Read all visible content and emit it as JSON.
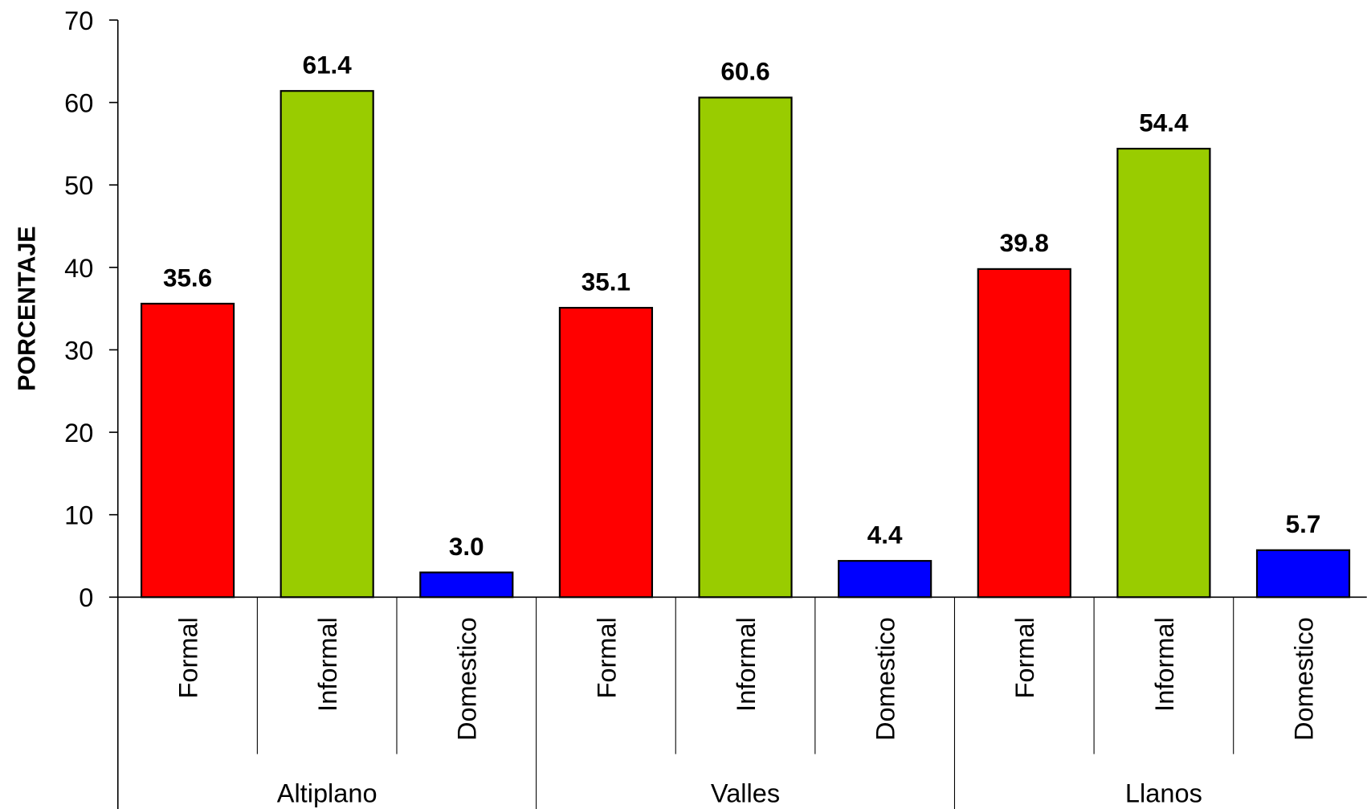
{
  "chart_data": {
    "type": "bar",
    "y_label": "PORCENTAJE",
    "groups": [
      "Altiplano",
      "Valles",
      "Llanos"
    ],
    "categories": [
      "Formal",
      "Informal",
      "Domestico",
      "Formal",
      "Informal",
      "Domestico",
      "Formal",
      "Informal",
      "Domestico"
    ],
    "values": [
      35.6,
      61.4,
      3.0,
      35.1,
      60.6,
      4.4,
      39.8,
      54.4,
      5.7
    ],
    "value_labels": [
      "35.6",
      "61.4",
      "3.0",
      "35.1",
      "60.6",
      "4.4",
      "39.8",
      "54.4",
      "5.7"
    ],
    "colors": [
      "#ff0000",
      "#99cc00",
      "#0000ff"
    ],
    "ylim": [
      0,
      70
    ],
    "yticks": [
      0,
      10,
      20,
      30,
      40,
      50,
      60,
      70
    ],
    "grid": false
  }
}
